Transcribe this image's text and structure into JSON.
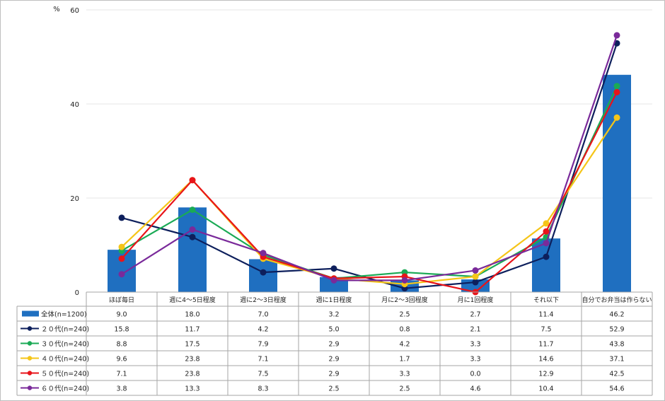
{
  "chart_data": {
    "type": "bar+line",
    "unit_label": "%",
    "ylim": [
      0,
      60
    ],
    "yticks": [
      0,
      20,
      40,
      60
    ],
    "categories": [
      "ほぼ毎日",
      "週に4～5日程度",
      "週に2～3日程度",
      "週に1日程度",
      "月に2～3回程度",
      "月に1回程度",
      "それ以下",
      "自分でお弁当は作らない"
    ],
    "bar_series": {
      "name": "全体(n=1200)",
      "color": "#1f6fc0",
      "values": [
        9.0,
        18.0,
        7.0,
        3.2,
        2.5,
        2.7,
        11.4,
        46.2
      ],
      "labels": [
        "9.0",
        "18.0",
        "7.0",
        "3.2",
        "2.5",
        "2.7",
        "11.4",
        "46.2"
      ]
    },
    "line_series": [
      {
        "name": "２０代(n=240)",
        "color": "#0d1f5c",
        "values": [
          15.8,
          11.7,
          4.2,
          5.0,
          0.8,
          2.1,
          7.5,
          52.9
        ],
        "labels": [
          "15.8",
          "11.7",
          "4.2",
          "5.0",
          "0.8",
          "2.1",
          "7.5",
          "52.9"
        ]
      },
      {
        "name": "３０代(n=240)",
        "color": "#1aaa55",
        "values": [
          8.8,
          17.5,
          7.9,
          2.9,
          4.2,
          3.3,
          11.7,
          43.8
        ],
        "labels": [
          "8.8",
          "17.5",
          "7.9",
          "2.9",
          "4.2",
          "3.3",
          "11.7",
          "43.8"
        ]
      },
      {
        "name": "４０代(n=240)",
        "color": "#f5c518",
        "values": [
          9.6,
          23.8,
          7.1,
          2.9,
          1.7,
          3.3,
          14.6,
          37.1
        ],
        "labels": [
          "9.6",
          "23.8",
          "7.1",
          "2.9",
          "1.7",
          "3.3",
          "14.6",
          "37.1"
        ]
      },
      {
        "name": "５０代(n=240)",
        "color": "#e8141a",
        "values": [
          7.1,
          23.8,
          7.5,
          2.9,
          3.3,
          0.0,
          12.9,
          42.5
        ],
        "labels": [
          "7.1",
          "23.8",
          "7.5",
          "2.9",
          "3.3",
          "0.0",
          "12.9",
          "42.5"
        ]
      },
      {
        "name": "６０代(n=240)",
        "color": "#7a2a9a",
        "values": [
          3.8,
          13.3,
          8.3,
          2.5,
          2.5,
          4.6,
          10.4,
          54.6
        ],
        "labels": [
          "3.8",
          "13.3",
          "8.3",
          "2.5",
          "2.5",
          "4.6",
          "10.4",
          "54.6"
        ]
      }
    ]
  }
}
